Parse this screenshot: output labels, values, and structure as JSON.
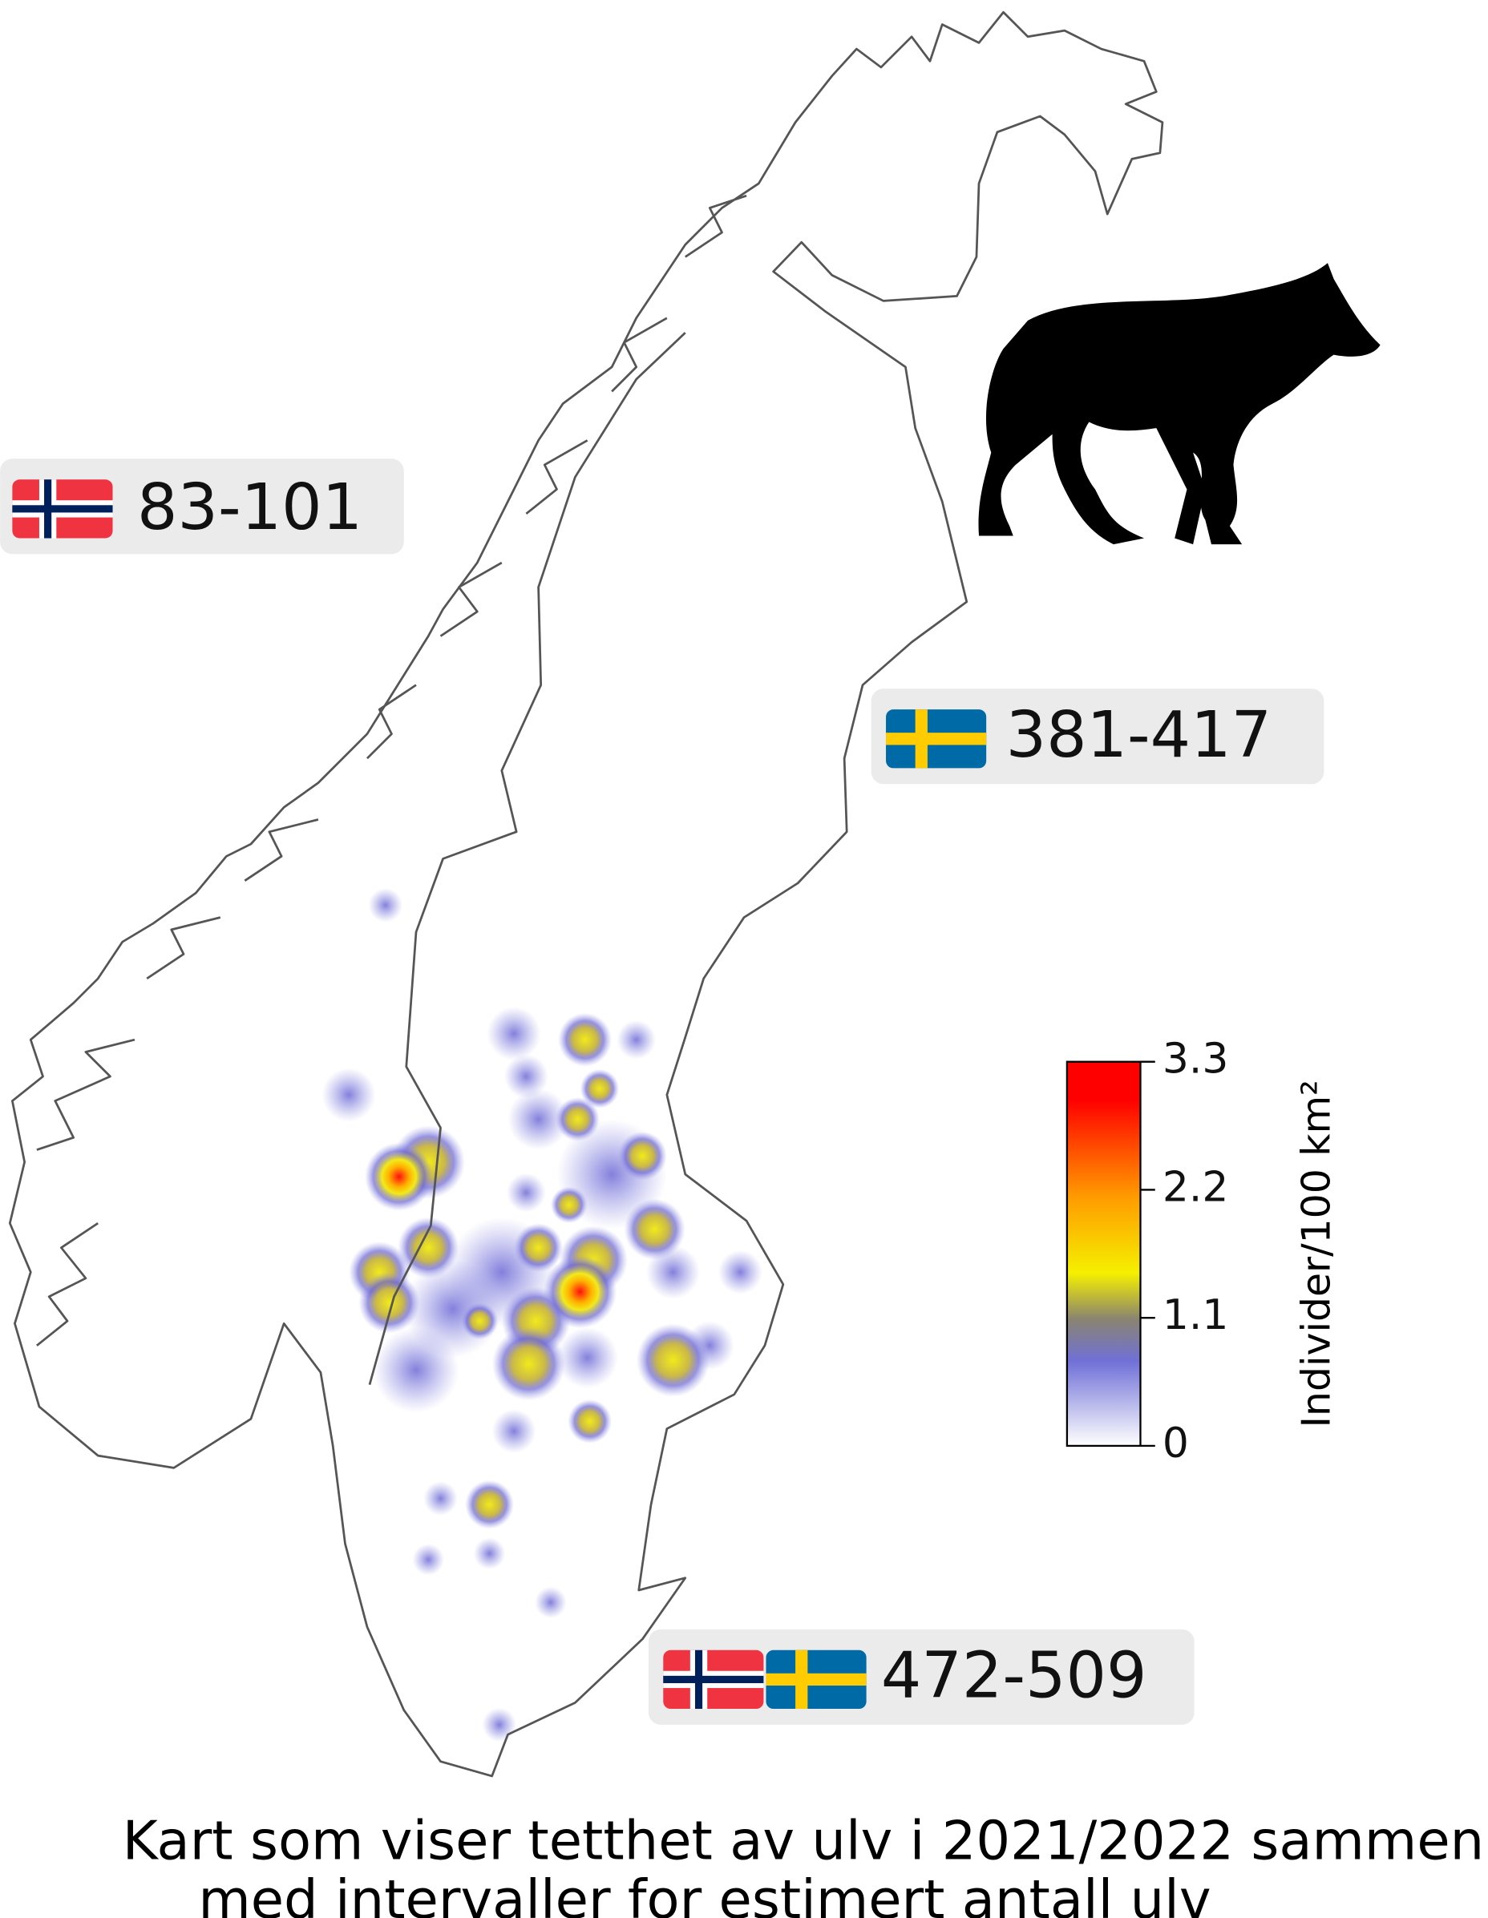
{
  "map": {
    "estimates": [
      {
        "country": "norway",
        "label": "83-101"
      },
      {
        "country": "sweden",
        "label": "381-417"
      },
      {
        "country": "both",
        "label": "472-509"
      }
    ],
    "colorbar": {
      "label": "Individer/100 km²",
      "lim": [
        0,
        3.3
      ],
      "ticks": [
        0,
        1.1,
        2.2,
        3.3
      ]
    },
    "caption": [
      "Kart som viser tetthet av ulv i 2021/2022 sammen",
      "med intervaller for estimert antall ulv"
    ]
  }
}
